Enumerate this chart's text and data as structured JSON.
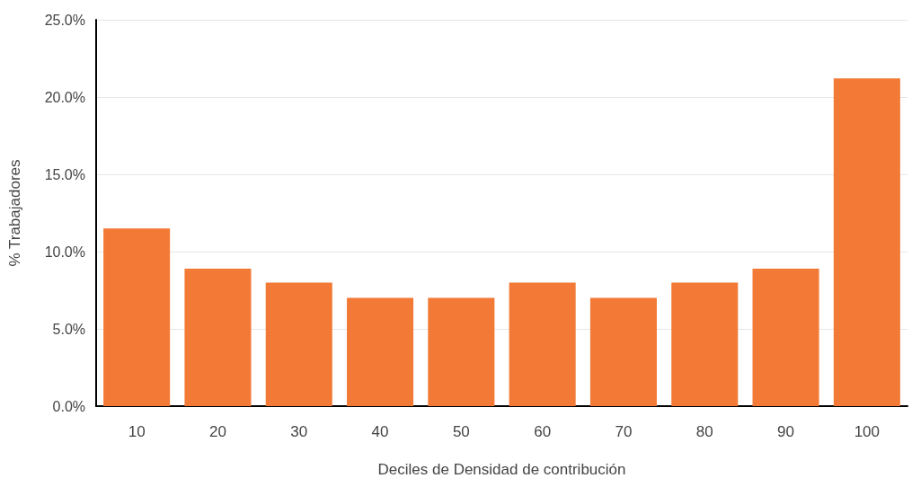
{
  "chart_data": {
    "type": "bar",
    "xlabel": "Deciles de Densidad de contribución",
    "ylabel": "% Trabajadores",
    "categories": [
      "10",
      "20",
      "30",
      "40",
      "50",
      "60",
      "70",
      "80",
      "90",
      "100"
    ],
    "values": [
      11.5,
      8.9,
      8.0,
      7.0,
      7.0,
      8.0,
      7.0,
      8.0,
      8.9,
      21.2
    ],
    "color": "#f27a36",
    "ylim": [
      0,
      25
    ],
    "yticks": [
      {
        "value": 0,
        "label": "0.0%"
      },
      {
        "value": 5,
        "label": "5.0%"
      },
      {
        "value": 10,
        "label": "10.0%"
      },
      {
        "value": 15,
        "label": "15.0%"
      },
      {
        "value": 20,
        "label": "20.0%"
      },
      {
        "value": 25,
        "label": "25.0%"
      }
    ],
    "grid": "y"
  }
}
